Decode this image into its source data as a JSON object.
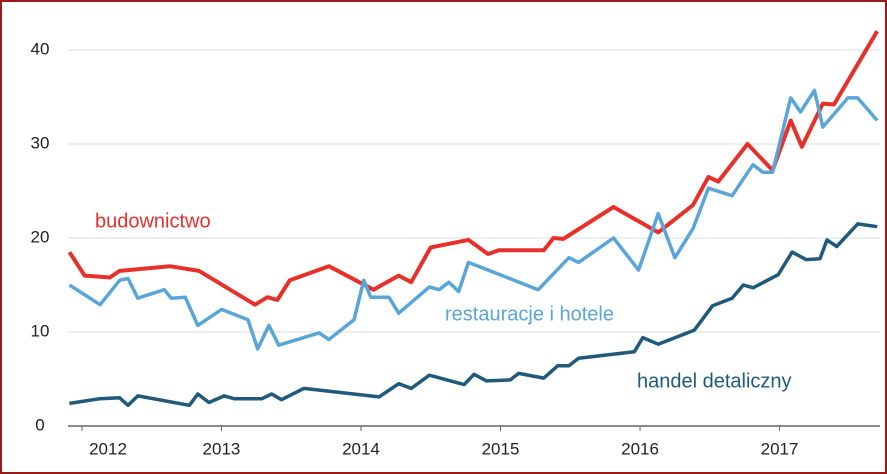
{
  "chart_data": {
    "type": "line",
    "xlim": [
      2011.9,
      2017.72
    ],
    "xticks": [
      2012,
      2013,
      2014,
      2015,
      2016,
      2017
    ],
    "ylim": [
      0,
      40
    ],
    "yticks": [
      0,
      10,
      20,
      30,
      40
    ],
    "grid": true,
    "series": [
      {
        "name": "budownictwo",
        "color": "#e8302a",
        "x": [
          2011.91,
          2012.02,
          2012.2,
          2012.27,
          2012.63,
          2012.84,
          2013.24,
          2013.33,
          2013.4,
          2013.49,
          2013.77,
          2014.09,
          2014.27,
          2014.36,
          2014.5,
          2014.77,
          2014.91,
          2014.99,
          2015.31,
          2015.38,
          2015.45,
          2015.81,
          2016.13,
          2016.38,
          2016.49,
          2016.56,
          2016.77,
          2016.95,
          2017.08,
          2017.16,
          2017.31,
          2017.39,
          2017.7
        ],
        "values": [
          18.5,
          16,
          15.8,
          16.5,
          17,
          16.5,
          12.9,
          13.7,
          13.4,
          15.5,
          17,
          14.5,
          16,
          15.3,
          19,
          19.8,
          18.3,
          18.7,
          18.7,
          20,
          19.9,
          23.3,
          20.6,
          23.5,
          26.5,
          26,
          30,
          27.2,
          32.5,
          29.7,
          34.3,
          34.2,
          42
        ]
      },
      {
        "name": "restauracje i hotele",
        "color": "#5aa5d8",
        "x": [
          2011.91,
          2012.13,
          2012.27,
          2012.33,
          2012.4,
          2012.59,
          2012.64,
          2012.74,
          2012.83,
          2013.0,
          2013.19,
          2013.26,
          2013.34,
          2013.41,
          2013.7,
          2013.77,
          2013.95,
          2014.02,
          2014.07,
          2014.2,
          2014.27,
          2014.49,
          2014.56,
          2014.63,
          2014.7,
          2014.77,
          2015.27,
          2015.49,
          2015.56,
          2015.81,
          2015.99,
          2016.13,
          2016.25,
          2016.38,
          2016.49,
          2016.66,
          2016.81,
          2016.88,
          2016.95,
          2017.08,
          2017.15,
          2017.25,
          2017.31,
          2017.49,
          2017.56,
          2017.7
        ],
        "values": [
          15,
          12.9,
          15.5,
          15.7,
          13.6,
          14.5,
          13.6,
          13.7,
          10.7,
          12.4,
          11.3,
          8.2,
          10.7,
          8.6,
          9.9,
          9.2,
          11.3,
          15.5,
          13.7,
          13.7,
          12,
          14.8,
          14.5,
          15.3,
          14.3,
          17.4,
          14.5,
          17.9,
          17.4,
          20,
          16.6,
          22.6,
          17.9,
          21,
          25.3,
          24.5,
          27.8,
          27,
          27,
          34.9,
          33.4,
          35.7,
          31.8,
          34.9,
          34.9,
          32.5
        ]
      },
      {
        "name": "handel detaliczny",
        "color": "#1f5a7a",
        "x": [
          2011.91,
          2012.13,
          2012.27,
          2012.33,
          2012.4,
          2012.77,
          2012.83,
          2012.91,
          2013.02,
          2013.09,
          2013.29,
          2013.36,
          2013.43,
          2013.59,
          2014.13,
          2014.27,
          2014.36,
          2014.49,
          2014.74,
          2014.81,
          2014.9,
          2015.07,
          2015.13,
          2015.31,
          2015.41,
          2015.49,
          2015.56,
          2015.96,
          2016.02,
          2016.13,
          2016.39,
          2016.52,
          2016.66,
          2016.74,
          2016.81,
          2016.99,
          2017.09,
          2017.19,
          2017.29,
          2017.34,
          2017.41,
          2017.56,
          2017.7
        ],
        "values": [
          2.4,
          2.9,
          3,
          2.2,
          3.2,
          2.2,
          3.4,
          2.5,
          3.2,
          2.9,
          2.9,
          3.4,
          2.8,
          4,
          3.1,
          4.5,
          4,
          5.4,
          4.4,
          5.5,
          4.8,
          4.9,
          5.6,
          5.1,
          6.4,
          6.4,
          7.2,
          7.9,
          9.4,
          8.7,
          10.2,
          12.8,
          13.6,
          15,
          14.7,
          16.1,
          18.5,
          17.7,
          17.8,
          19.8,
          19.1,
          21.5,
          21.2
        ]
      }
    ]
  }
}
